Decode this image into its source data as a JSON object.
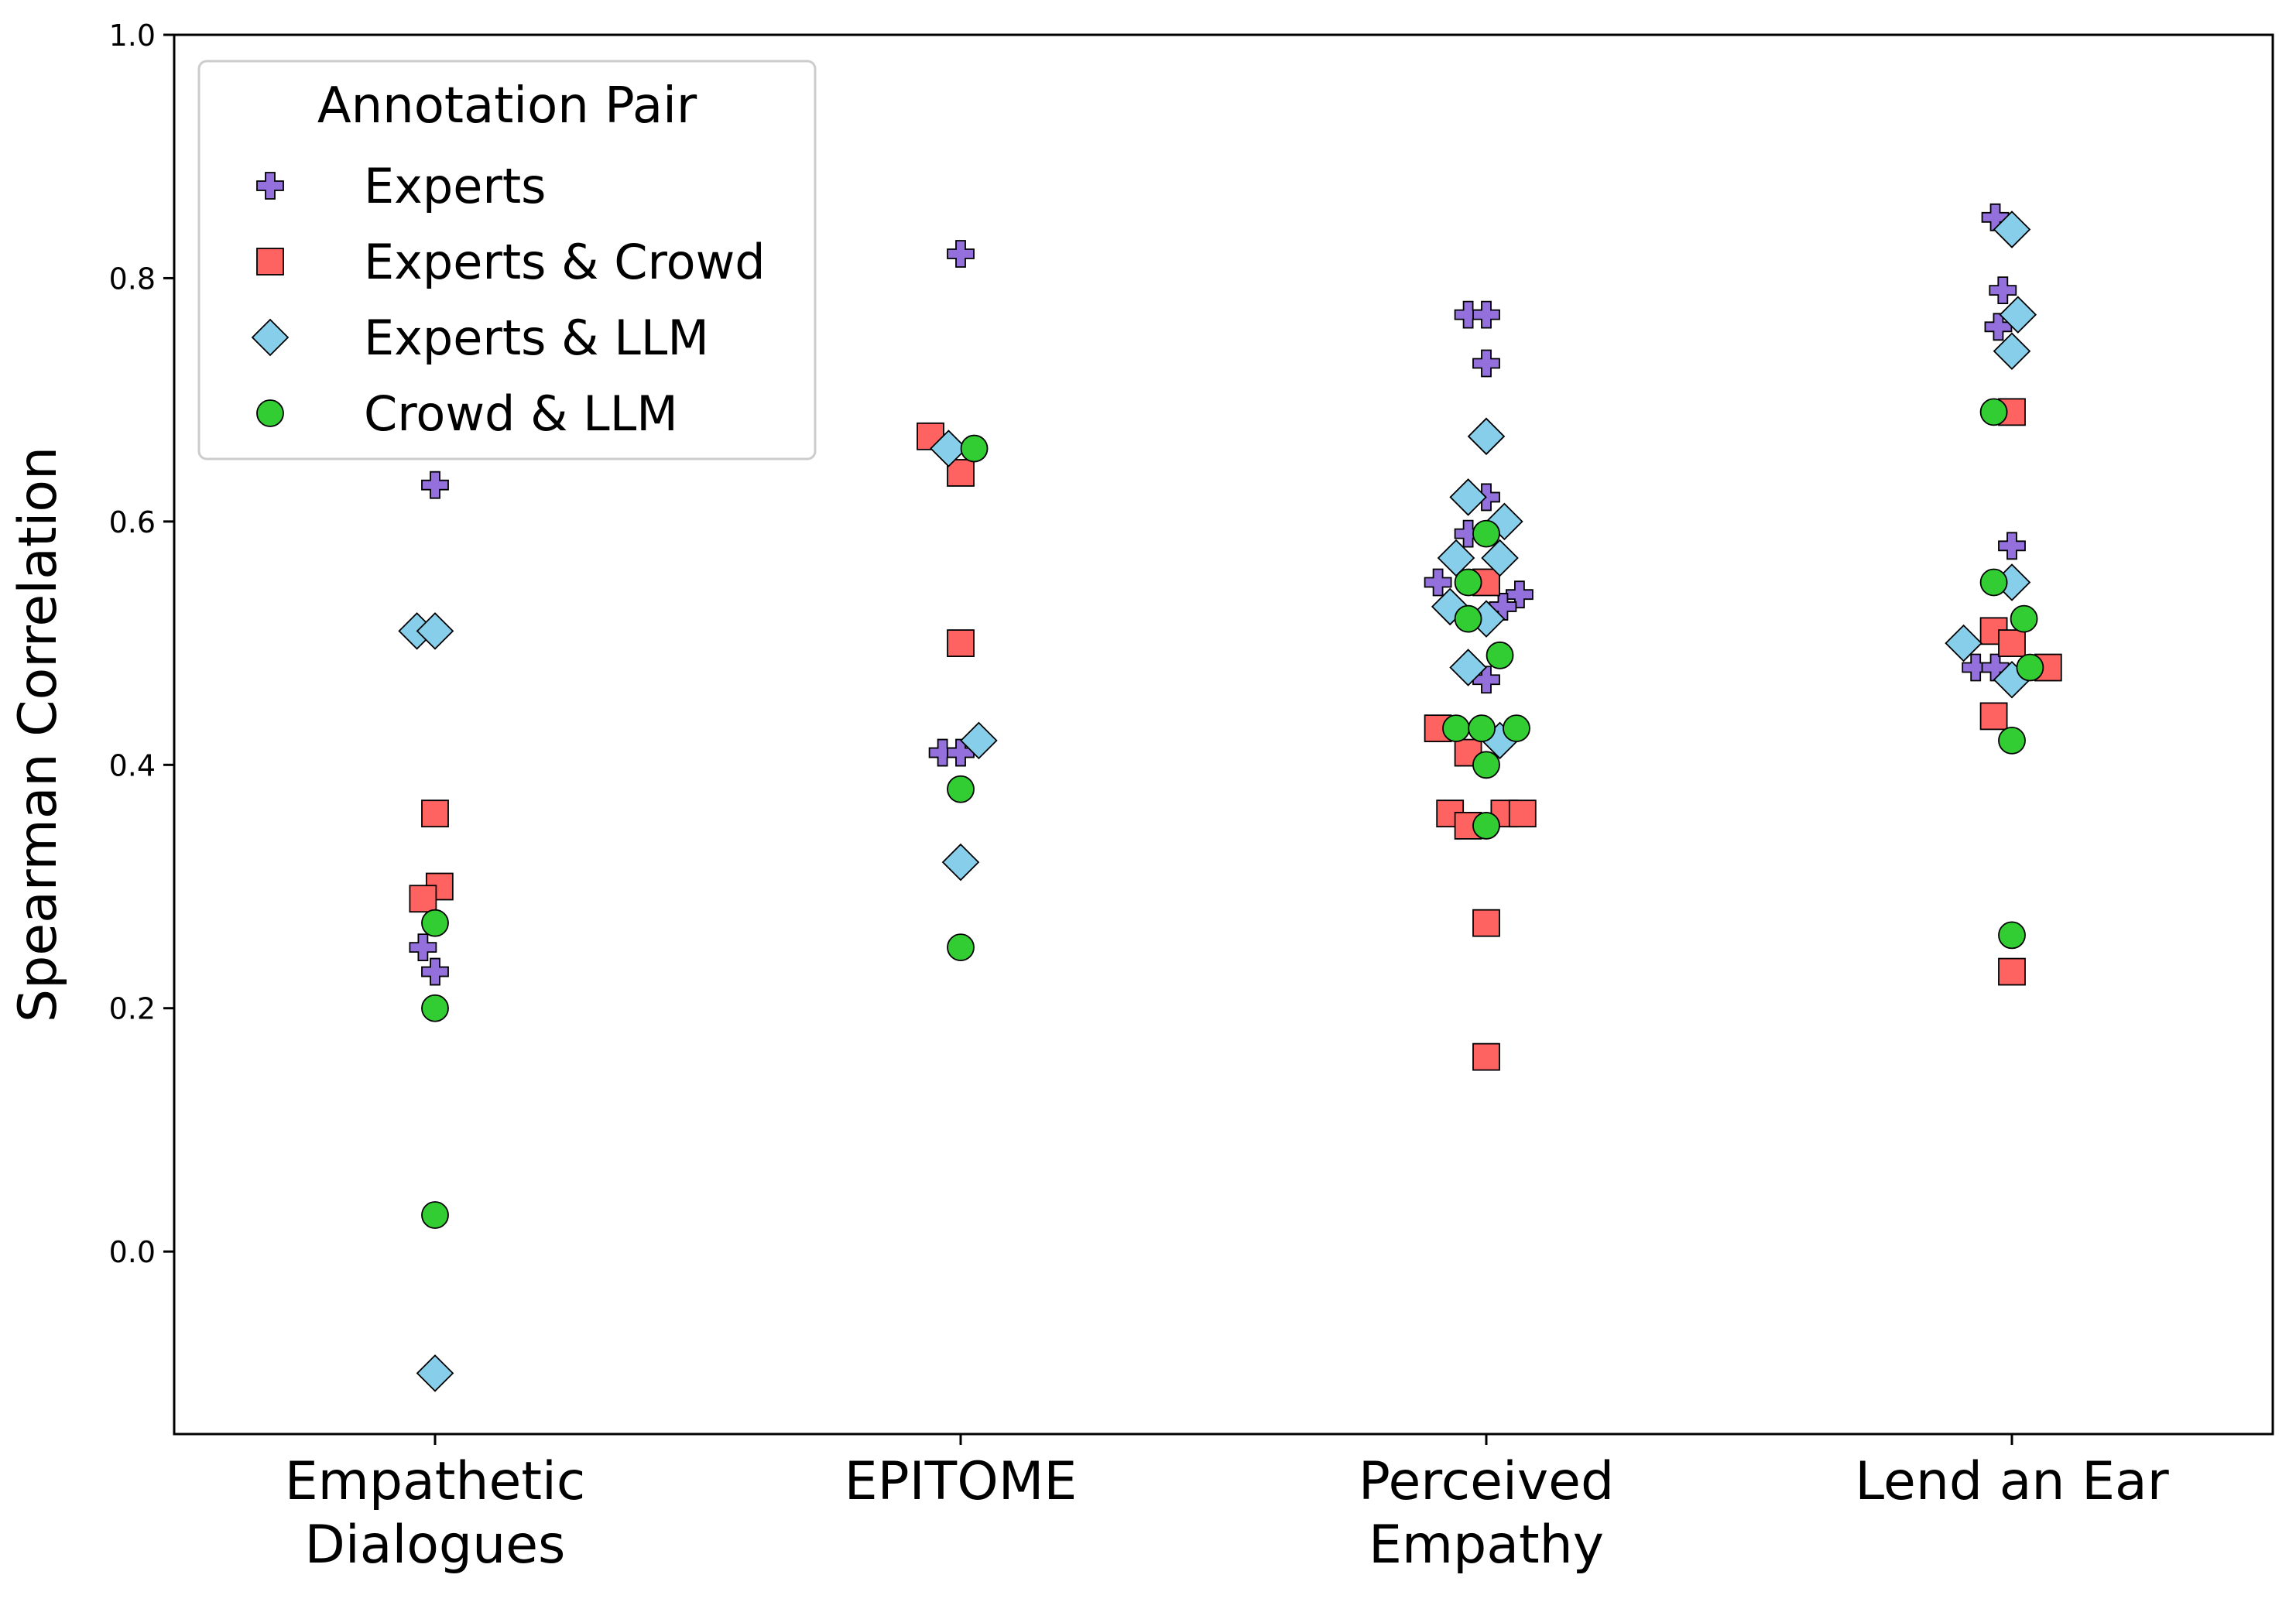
{
  "chart_data": {
    "type": "scatter",
    "title": "",
    "xlabel": "",
    "ylabel": "Spearman Correlation",
    "ylim": [
      -0.15,
      1.0
    ],
    "yticks": [
      "0.0",
      "0.2",
      "0.4",
      "0.6",
      "0.8",
      "1.0"
    ],
    "grid": false,
    "categories": [
      "Empathetic\nDialogues",
      "EPITOME",
      "Perceived\nEmpathy",
      "Lend an Ear"
    ],
    "legend": {
      "title": "Annotation Pair",
      "placement": "top-left"
    },
    "series": [
      {
        "name": "Experts",
        "marker": "plus",
        "color": "#9370DB",
        "points": [
          {
            "category": 0,
            "offset": 0,
            "y": 0.63
          },
          {
            "category": 0,
            "offset": -0.4,
            "y": 0.25
          },
          {
            "category": 0,
            "offset": 0,
            "y": 0.23
          },
          {
            "category": 1,
            "offset": 0,
            "y": 0.82
          },
          {
            "category": 1,
            "offset": -0.6,
            "y": 0.41
          },
          {
            "category": 1,
            "offset": 0,
            "y": 0.41
          },
          {
            "category": 2,
            "offset": -0.6,
            "y": 0.77
          },
          {
            "category": 2,
            "offset": 0,
            "y": 0.77
          },
          {
            "category": 2,
            "offset": 0,
            "y": 0.73
          },
          {
            "category": 2,
            "offset": 0,
            "y": 0.62
          },
          {
            "category": 2,
            "offset": -0.6,
            "y": 0.59
          },
          {
            "category": 2,
            "offset": -1.6,
            "y": 0.55
          },
          {
            "category": 2,
            "offset": 1.1,
            "y": 0.54
          },
          {
            "category": 2,
            "offset": 0.55,
            "y": 0.53
          },
          {
            "category": 2,
            "offset": 0,
            "y": 0.47
          },
          {
            "category": 3,
            "offset": -0.55,
            "y": 0.85
          },
          {
            "category": 3,
            "offset": -0.3,
            "y": 0.79
          },
          {
            "category": 3,
            "offset": -0.45,
            "y": 0.76
          },
          {
            "category": 3,
            "offset": 0,
            "y": 0.58
          },
          {
            "category": 3,
            "offset": -1.2,
            "y": 0.48
          },
          {
            "category": 3,
            "offset": -0.55,
            "y": 0.48
          }
        ]
      },
      {
        "name": "Experts & Crowd",
        "marker": "square",
        "color": "#FF6361",
        "points": [
          {
            "category": 0,
            "offset": 0,
            "y": 0.36
          },
          {
            "category": 0,
            "offset": 0.15,
            "y": 0.3
          },
          {
            "category": 0,
            "offset": -0.4,
            "y": 0.29
          },
          {
            "category": 1,
            "offset": -1.0,
            "y": 0.67
          },
          {
            "category": 1,
            "offset": 0,
            "y": 0.64
          },
          {
            "category": 1,
            "offset": 0,
            "y": 0.5
          },
          {
            "category": 2,
            "offset": 0,
            "y": 0.55
          },
          {
            "category": 2,
            "offset": -1.6,
            "y": 0.43
          },
          {
            "category": 2,
            "offset": -0.6,
            "y": 0.41
          },
          {
            "category": 2,
            "offset": -1.2,
            "y": 0.36
          },
          {
            "category": 2,
            "offset": 0.6,
            "y": 0.36
          },
          {
            "category": 2,
            "offset": 1.2,
            "y": 0.36
          },
          {
            "category": 2,
            "offset": -0.6,
            "y": 0.35
          },
          {
            "category": 2,
            "offset": 0,
            "y": 0.27
          },
          {
            "category": 2,
            "offset": 0,
            "y": 0.16
          },
          {
            "category": 3,
            "offset": 0,
            "y": 0.69
          },
          {
            "category": 3,
            "offset": -0.6,
            "y": 0.51
          },
          {
            "category": 3,
            "offset": 0,
            "y": 0.5
          },
          {
            "category": 3,
            "offset": 1.2,
            "y": 0.48
          },
          {
            "category": 3,
            "offset": -0.6,
            "y": 0.44
          },
          {
            "category": 3,
            "offset": 0,
            "y": 0.23
          }
        ]
      },
      {
        "name": "Experts & LLM",
        "marker": "diamond",
        "color": "#87CEEB",
        "points": [
          {
            "category": 0,
            "offset": -0.6,
            "y": 0.51
          },
          {
            "category": 0,
            "offset": 0,
            "y": 0.51
          },
          {
            "category": 0,
            "offset": 0,
            "y": -0.1
          },
          {
            "category": 1,
            "offset": -0.4,
            "y": 0.66
          },
          {
            "category": 1,
            "offset": 0.6,
            "y": 0.42
          },
          {
            "category": 1,
            "offset": 0,
            "y": 0.32
          },
          {
            "category": 2,
            "offset": 0,
            "y": 0.67
          },
          {
            "category": 2,
            "offset": -0.6,
            "y": 0.62
          },
          {
            "category": 2,
            "offset": 0.6,
            "y": 0.6
          },
          {
            "category": 2,
            "offset": -1.0,
            "y": 0.57
          },
          {
            "category": 2,
            "offset": 0.45,
            "y": 0.57
          },
          {
            "category": 2,
            "offset": -1.2,
            "y": 0.53
          },
          {
            "category": 2,
            "offset": 0,
            "y": 0.52
          },
          {
            "category": 2,
            "offset": -0.6,
            "y": 0.48
          },
          {
            "category": 2,
            "offset": 0.45,
            "y": 0.42
          },
          {
            "category": 3,
            "offset": 0,
            "y": 0.84
          },
          {
            "category": 3,
            "offset": 0.2,
            "y": 0.77
          },
          {
            "category": 3,
            "offset": 0,
            "y": 0.74
          },
          {
            "category": 3,
            "offset": 0,
            "y": 0.55
          },
          {
            "category": 3,
            "offset": -1.6,
            "y": 0.5
          },
          {
            "category": 3,
            "offset": 0,
            "y": 0.47
          }
        ]
      },
      {
        "name": "Crowd & LLM",
        "marker": "circle",
        "color": "#32CD32",
        "points": [
          {
            "category": 0,
            "offset": 0,
            "y": 0.27
          },
          {
            "category": 0,
            "offset": 0,
            "y": 0.2
          },
          {
            "category": 0,
            "offset": 0,
            "y": 0.03
          },
          {
            "category": 1,
            "offset": 0.45,
            "y": 0.66
          },
          {
            "category": 1,
            "offset": 0,
            "y": 0.38
          },
          {
            "category": 1,
            "offset": 0,
            "y": 0.25
          },
          {
            "category": 2,
            "offset": 0,
            "y": 0.59
          },
          {
            "category": 2,
            "offset": -0.6,
            "y": 0.55
          },
          {
            "category": 2,
            "offset": -0.6,
            "y": 0.52
          },
          {
            "category": 2,
            "offset": 0.45,
            "y": 0.49
          },
          {
            "category": 2,
            "offset": -1.0,
            "y": 0.43
          },
          {
            "category": 2,
            "offset": -0.15,
            "y": 0.43
          },
          {
            "category": 2,
            "offset": 1.0,
            "y": 0.43
          },
          {
            "category": 2,
            "offset": 0,
            "y": 0.4
          },
          {
            "category": 2,
            "offset": 0,
            "y": 0.35
          },
          {
            "category": 3,
            "offset": -0.6,
            "y": 0.69
          },
          {
            "category": 3,
            "offset": -0.6,
            "y": 0.55
          },
          {
            "category": 3,
            "offset": 0.4,
            "y": 0.52
          },
          {
            "category": 3,
            "offset": 0.6,
            "y": 0.48
          },
          {
            "category": 3,
            "offset": 0,
            "y": 0.42
          },
          {
            "category": 3,
            "offset": 0,
            "y": 0.26
          }
        ]
      }
    ]
  }
}
